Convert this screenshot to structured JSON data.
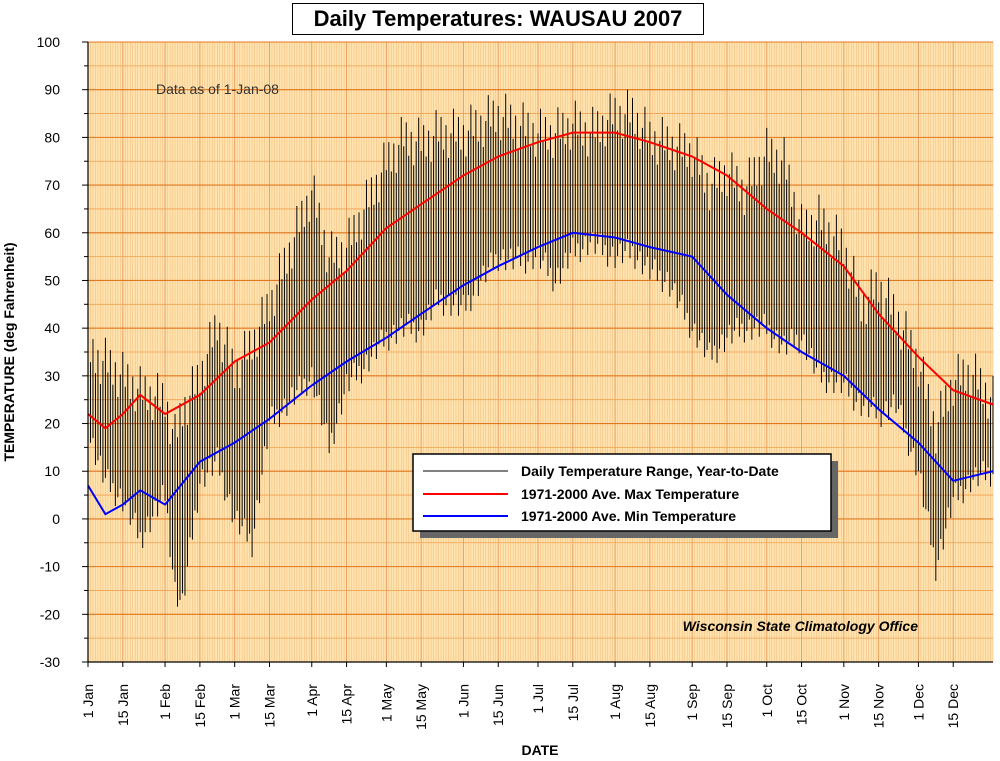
{
  "chart_data": {
    "type": "line",
    "title": "Daily Temperatures: WAUSAU 2007",
    "xlabel": "DATE",
    "ylabel": "TEMPERATURE (deg Fahrenheit)",
    "ylim": [
      -30,
      100
    ],
    "xlim": [
      "2007-01-01",
      "2007-12-31"
    ],
    "yticks": [
      -30,
      -20,
      -10,
      0,
      10,
      20,
      30,
      40,
      50,
      60,
      70,
      80,
      90,
      100
    ],
    "xticks": [
      {
        "label": "1 Jan",
        "date": "2007-01-01"
      },
      {
        "label": "15 Jan",
        "date": "2007-01-15"
      },
      {
        "label": "1 Feb",
        "date": "2007-02-01"
      },
      {
        "label": "15 Feb",
        "date": "2007-02-15"
      },
      {
        "label": "1 Mar",
        "date": "2007-03-01"
      },
      {
        "label": "15 Mar",
        "date": "2007-03-15"
      },
      {
        "label": "1 Apr",
        "date": "2007-04-01"
      },
      {
        "label": "15 Apr",
        "date": "2007-04-15"
      },
      {
        "label": "1 May",
        "date": "2007-05-01"
      },
      {
        "label": "15 May",
        "date": "2007-05-15"
      },
      {
        "label": "1 Jun",
        "date": "2007-06-01"
      },
      {
        "label": "15 Jun",
        "date": "2007-06-15"
      },
      {
        "label": "1 Jul",
        "date": "2007-07-01"
      },
      {
        "label": "15 Jul",
        "date": "2007-07-15"
      },
      {
        "label": "1 Aug",
        "date": "2007-08-01"
      },
      {
        "label": "15 Aug",
        "date": "2007-08-15"
      },
      {
        "label": "1 Sep",
        "date": "2007-09-01"
      },
      {
        "label": "15 Sep",
        "date": "2007-09-15"
      },
      {
        "label": "1 Oct",
        "date": "2007-10-01"
      },
      {
        "label": "15 Oct",
        "date": "2007-10-15"
      },
      {
        "label": "1 Nov",
        "date": "2007-11-01"
      },
      {
        "label": "15 Nov",
        "date": "2007-11-15"
      },
      {
        "label": "1 Dec",
        "date": "2007-12-01"
      },
      {
        "label": "15 Dec",
        "date": "2007-12-15"
      }
    ],
    "grid": true,
    "legend_position": "lower-right",
    "annotations": [
      {
        "text": "Data as of 1-Jan-08",
        "position": "top-left"
      },
      {
        "text": "Wisconsin State Climatology Office",
        "position": "bottom-right"
      }
    ],
    "series": [
      {
        "name": "Daily Temperature Range, Year-to-Date",
        "kind": "range",
        "color": "#000000",
        "x": [
          "2007-01-01",
          "2007-01-08",
          "2007-01-15",
          "2007-01-22",
          "2007-02-01",
          "2007-02-05",
          "2007-02-08",
          "2007-02-15",
          "2007-02-22",
          "2007-03-01",
          "2007-03-08",
          "2007-03-15",
          "2007-03-22",
          "2007-04-01",
          "2007-04-08",
          "2007-04-15",
          "2007-04-22",
          "2007-05-01",
          "2007-05-08",
          "2007-05-15",
          "2007-05-22",
          "2007-06-01",
          "2007-06-08",
          "2007-06-15",
          "2007-06-22",
          "2007-07-01",
          "2007-07-08",
          "2007-07-15",
          "2007-07-22",
          "2007-08-01",
          "2007-08-08",
          "2007-08-15",
          "2007-08-22",
          "2007-09-01",
          "2007-09-08",
          "2007-09-15",
          "2007-09-22",
          "2007-10-01",
          "2007-10-08",
          "2007-10-15",
          "2007-10-22",
          "2007-11-01",
          "2007-11-08",
          "2007-11-15",
          "2007-11-22",
          "2007-12-01",
          "2007-12-08",
          "2007-12-15",
          "2007-12-22",
          "2007-12-31"
        ],
        "low": [
          18,
          8,
          4,
          -4,
          5,
          -15,
          -18,
          8,
          12,
          0,
          -5,
          20,
          24,
          30,
          15,
          28,
          32,
          38,
          40,
          40,
          46,
          44,
          50,
          55,
          54,
          55,
          50,
          56,
          58,
          55,
          56,
          52,
          50,
          40,
          34,
          38,
          40,
          40,
          36,
          38,
          30,
          28,
          24,
          22,
          24,
          10,
          -10,
          4,
          8,
          10
        ],
        "high": [
          40,
          38,
          35,
          32,
          30,
          22,
          28,
          35,
          46,
          36,
          42,
          50,
          60,
          74,
          60,
          62,
          70,
          80,
          85,
          84,
          86,
          86,
          88,
          90,
          88,
          86,
          86,
          88,
          86,
          90,
          90,
          85,
          84,
          82,
          75,
          78,
          74,
          82,
          80,
          66,
          68,
          62,
          50,
          54,
          48,
          38,
          24,
          34,
          36,
          30
        ]
      },
      {
        "name": "1971-2000 Ave. Max Temperature",
        "color": "#ff0000",
        "x": [
          "2007-01-01",
          "2007-01-08",
          "2007-01-15",
          "2007-01-22",
          "2007-02-01",
          "2007-02-15",
          "2007-03-01",
          "2007-03-15",
          "2007-04-01",
          "2007-04-15",
          "2007-05-01",
          "2007-05-15",
          "2007-06-01",
          "2007-06-15",
          "2007-07-01",
          "2007-07-15",
          "2007-08-01",
          "2007-08-15",
          "2007-09-01",
          "2007-09-15",
          "2007-10-01",
          "2007-10-15",
          "2007-11-01",
          "2007-11-15",
          "2007-12-01",
          "2007-12-15",
          "2007-12-31"
        ],
        "values": [
          22,
          19,
          22,
          26,
          22,
          26,
          33,
          37,
          46,
          52,
          61,
          66,
          72,
          76,
          79,
          81,
          81,
          79,
          76,
          72,
          65,
          60,
          53,
          43,
          34,
          27,
          24
        ]
      },
      {
        "name": "1971-2000 Ave. Min Temperature",
        "color": "#0000ff",
        "x": [
          "2007-01-01",
          "2007-01-08",
          "2007-01-15",
          "2007-01-22",
          "2007-02-01",
          "2007-02-15",
          "2007-03-01",
          "2007-03-15",
          "2007-04-01",
          "2007-04-15",
          "2007-05-01",
          "2007-05-15",
          "2007-06-01",
          "2007-06-15",
          "2007-07-01",
          "2007-07-15",
          "2007-08-01",
          "2007-08-15",
          "2007-09-01",
          "2007-09-15",
          "2007-10-01",
          "2007-10-15",
          "2007-11-01",
          "2007-11-15",
          "2007-12-01",
          "2007-12-15",
          "2007-12-31"
        ],
        "values": [
          7,
          1,
          3,
          6,
          3,
          12,
          16,
          21,
          28,
          33,
          38,
          43,
          49,
          53,
          57,
          60,
          59,
          57,
          55,
          47,
          40,
          35,
          30,
          23,
          16,
          8,
          10
        ]
      }
    ]
  }
}
